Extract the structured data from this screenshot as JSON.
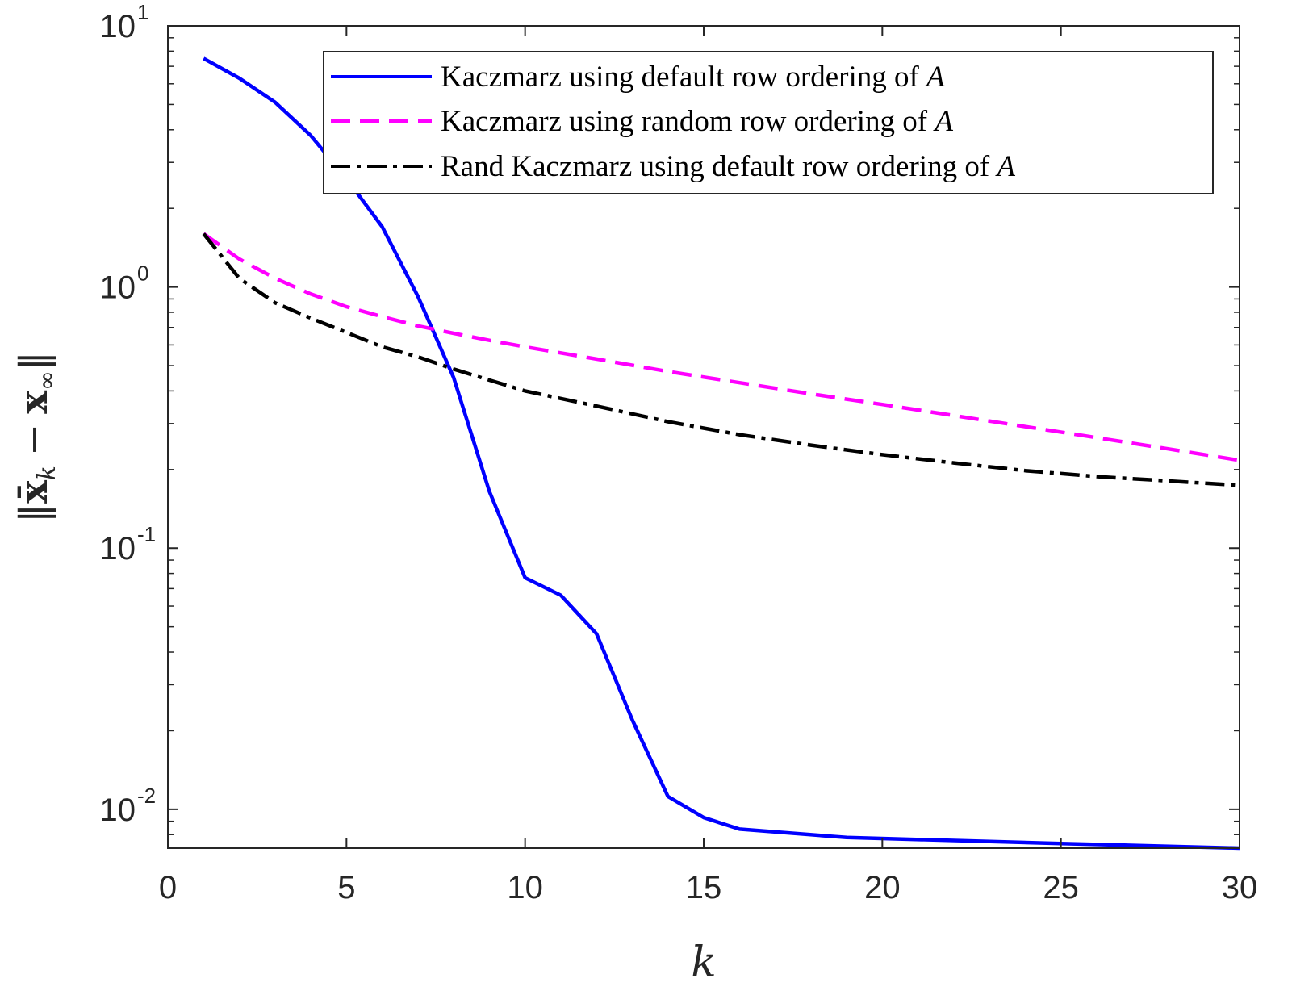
{
  "chart_data": {
    "type": "line",
    "xlabel": "k",
    "ylabel": "‖x̄ₖ − x∞‖",
    "ylabel_parts": {
      "open": "‖",
      "x": "x̄",
      "k": "k",
      "minus": "−",
      "xinf": "x",
      "inf": "∞",
      "close": "‖"
    },
    "xlim": [
      0,
      30
    ],
    "ylim": [
      0.0071,
      10
    ],
    "yscale": "log",
    "grid": false,
    "legend_position": "top-right",
    "x_ticks": [
      0,
      5,
      10,
      15,
      20,
      25,
      30
    ],
    "x_tick_labels": [
      "0",
      "5",
      "10",
      "15",
      "20",
      "25",
      "30"
    ],
    "y_ticks": [
      0.01,
      0.1,
      1,
      10
    ],
    "y_tick_labels": [
      {
        "base": "10",
        "exp": "-2"
      },
      {
        "base": "10",
        "exp": "-1"
      },
      {
        "base": "10",
        "exp": "0"
      },
      {
        "base": "10",
        "exp": "1"
      }
    ],
    "series": [
      {
        "name": "Kaczmarz using default row ordering of A",
        "name_text": "Kaczmarz using default row ordering of ",
        "name_var": "A",
        "color": "#0000ff",
        "style": "solid",
        "x": [
          1,
          2,
          3,
          4,
          5,
          6,
          7,
          8,
          9,
          10,
          11,
          12,
          13,
          14,
          15,
          16,
          19,
          25,
          30
        ],
        "y": [
          7.5,
          6.3,
          5.1,
          3.8,
          2.6,
          1.7,
          0.92,
          0.45,
          0.165,
          0.077,
          0.066,
          0.047,
          0.022,
          0.0112,
          0.0093,
          0.0084,
          0.0078,
          0.0074,
          0.0071
        ]
      },
      {
        "name": "Kaczmarz using random row ordering of A",
        "name_text": "Kaczmarz using random row ordering of ",
        "name_var": "A",
        "color": "#ff00ff",
        "style": "dashed",
        "x": [
          1,
          2,
          3,
          4,
          5,
          6,
          7,
          8,
          9,
          10,
          12,
          14,
          16,
          18,
          20,
          22,
          24,
          26,
          28,
          30
        ],
        "y": [
          1.6,
          1.28,
          1.08,
          0.94,
          0.84,
          0.77,
          0.71,
          0.665,
          0.625,
          0.59,
          0.53,
          0.475,
          0.43,
          0.39,
          0.355,
          0.322,
          0.292,
          0.265,
          0.24,
          0.217
        ]
      },
      {
        "name": "Rand Kaczmarz using default row ordering of A",
        "name_text": "Rand Kaczmarz using default row ordering of ",
        "name_var": "A",
        "color": "#000000",
        "style": "dashdot",
        "x": [
          1,
          2,
          3,
          4,
          5,
          6,
          7,
          8,
          9,
          10,
          12,
          14,
          16,
          18,
          20,
          22,
          24,
          26,
          28,
          30
        ],
        "y": [
          1.6,
          1.08,
          0.87,
          0.76,
          0.67,
          0.59,
          0.54,
          0.485,
          0.44,
          0.4,
          0.35,
          0.305,
          0.272,
          0.248,
          0.228,
          0.212,
          0.198,
          0.188,
          0.181,
          0.174
        ]
      }
    ]
  }
}
